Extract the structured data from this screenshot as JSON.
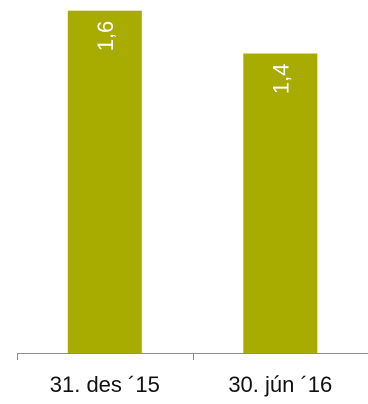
{
  "chart_data": {
    "type": "bar",
    "categories": [
      "31. des ´15",
      "30. jún ´16"
    ],
    "values": [
      1.6,
      1.4
    ],
    "value_labels": [
      "1,6",
      "1,4"
    ],
    "ylim": [
      0,
      1.65
    ],
    "grid": false,
    "legend": "none",
    "colors": {
      "bar": "#a8ac00",
      "bar_label": "#ffffff",
      "axis": "#8c8c8c",
      "tick_label": "#111111"
    }
  }
}
